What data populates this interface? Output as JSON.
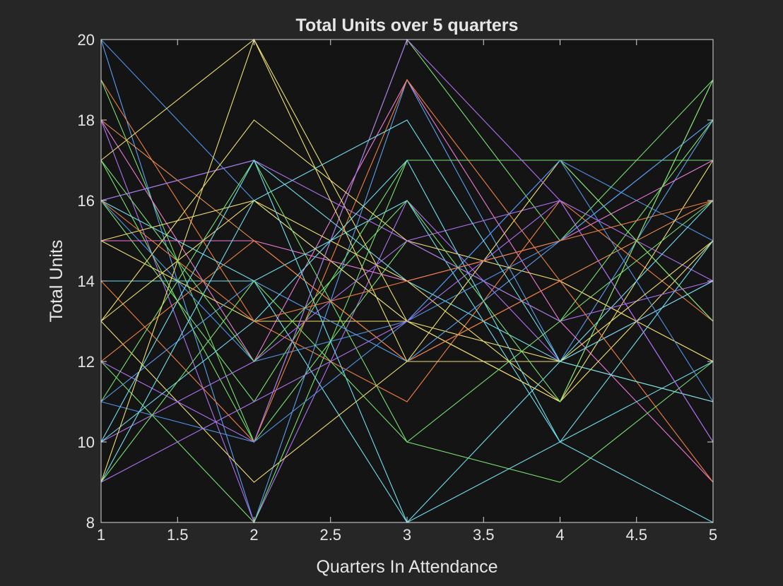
{
  "chart_data": {
    "type": "line",
    "title": "Total Units over 5 quarters",
    "xlabel": "Quarters In Attendance",
    "ylabel": "Total Units",
    "xlim": [
      1,
      5
    ],
    "ylim": [
      8,
      20
    ],
    "xticks": [
      "1",
      "1.5",
      "2",
      "2.5",
      "3",
      "3.5",
      "4",
      "4.5",
      "5"
    ],
    "yticks": [
      "8",
      "10",
      "12",
      "14",
      "16",
      "18",
      "20"
    ],
    "x": [
      1,
      2,
      3,
      4,
      5
    ],
    "grid": false,
    "legend": "none",
    "colors": {
      "background": "#262626",
      "plot_area": "#141414",
      "axis": "#d9d9d9",
      "text": "#e6e6e6"
    },
    "series": [
      {
        "values": [
          20,
          8,
          19,
          12,
          18
        ],
        "color": "#5aa0f0"
      },
      {
        "values": [
          20,
          16,
          13,
          17,
          15
        ],
        "color": "#4f94e8"
      },
      {
        "values": [
          19,
          13,
          11,
          16,
          13
        ],
        "color": "#f08040"
      },
      {
        "values": [
          19,
          10,
          20,
          15,
          19
        ],
        "color": "#78e070"
      },
      {
        "values": [
          18,
          12,
          19,
          13,
          9
        ],
        "color": "#f07ad8"
      },
      {
        "values": [
          18,
          15,
          12,
          14,
          16
        ],
        "color": "#f09050"
      },
      {
        "values": [
          18,
          8,
          16,
          12,
          14
        ],
        "color": "#b070f0"
      },
      {
        "values": [
          17,
          20,
          13,
          11,
          17
        ],
        "color": "#f0e070"
      },
      {
        "values": [
          17,
          10,
          15,
          13,
          16
        ],
        "color": "#78e070"
      },
      {
        "values": [
          16,
          11,
          17,
          17,
          17
        ],
        "color": "#78e070"
      },
      {
        "values": [
          16,
          17,
          14,
          12,
          14
        ],
        "color": "#70e0f0"
      },
      {
        "values": [
          16,
          14,
          16,
          10,
          12
        ],
        "color": "#70e0f0"
      },
      {
        "values": [
          16,
          12,
          13,
          15,
          18
        ],
        "color": "#4f94e8"
      },
      {
        "values": [
          16,
          17,
          15,
          16,
          14
        ],
        "color": "#b070f0"
      },
      {
        "values": [
          15,
          16,
          13,
          12,
          11
        ],
        "color": "#f0e070"
      },
      {
        "values": [
          15,
          15,
          14,
          15,
          17
        ],
        "color": "#f07ad8"
      },
      {
        "values": [
          15,
          13,
          13,
          11,
          19
        ],
        "color": "#f0e070"
      },
      {
        "values": [
          14,
          10,
          19,
          14,
          12
        ],
        "color": "#f08040"
      },
      {
        "values": [
          14,
          14,
          8,
          12,
          16
        ],
        "color": "#70e0f0"
      },
      {
        "values": [
          13,
          18,
          15,
          14,
          12
        ],
        "color": "#f0e070"
      },
      {
        "values": [
          13,
          9,
          12,
          17,
          13
        ],
        "color": "#f0e070"
      },
      {
        "values": [
          13,
          16,
          14,
          11,
          15
        ],
        "color": "#f0e070"
      },
      {
        "values": [
          12,
          8,
          17,
          17,
          13
        ],
        "color": "#78e070"
      },
      {
        "values": [
          12,
          15,
          12,
          14,
          9
        ],
        "color": "#f08040"
      },
      {
        "values": [
          12,
          10,
          20,
          16,
          10
        ],
        "color": "#b070f0"
      },
      {
        "values": [
          11,
          17,
          10,
          9,
          12
        ],
        "color": "#78e070"
      },
      {
        "values": [
          11,
          14,
          12,
          15,
          18
        ],
        "color": "#5aa0f0"
      },
      {
        "values": [
          11,
          10,
          13,
          17,
          11
        ],
        "color": "#4f94e8"
      },
      {
        "values": [
          10,
          17,
          8,
          10,
          15
        ],
        "color": "#70e0f0"
      },
      {
        "values": [
          10,
          12,
          15,
          13,
          14
        ],
        "color": "#b070f0"
      },
      {
        "values": [
          10,
          13,
          17,
          10,
          8
        ],
        "color": "#70e0f0"
      },
      {
        "values": [
          9,
          16,
          18,
          12,
          11
        ],
        "color": "#70e0f0"
      },
      {
        "values": [
          9,
          11,
          13,
          16,
          10
        ],
        "color": "#b070f0"
      },
      {
        "values": [
          9,
          20,
          12,
          12,
          15
        ],
        "color": "#f0e070"
      },
      {
        "values": [
          9,
          14,
          10,
          13,
          18
        ],
        "color": "#78e070"
      },
      {
        "values": [
          16,
          13,
          14,
          15,
          16
        ],
        "color": "#f08040"
      },
      {
        "values": [
          17,
          12,
          16,
          11,
          19
        ],
        "color": "#78e070"
      }
    ]
  }
}
